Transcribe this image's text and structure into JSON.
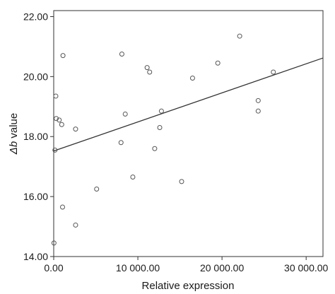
{
  "chart_data": {
    "type": "scatter",
    "title": "",
    "xlabel": "Relative expression",
    "ylabel_symbol": "Δb",
    "ylabel_rest": " value",
    "xlim": [
      0,
      32000
    ],
    "ylim": [
      14,
      22.2
    ],
    "xticks": [
      {
        "value": 0,
        "label": "0.00"
      },
      {
        "value": 10000,
        "label": "10 000.00"
      },
      {
        "value": 20000,
        "label": "20 000.00"
      },
      {
        "value": 30000,
        "label": "30 000.00"
      }
    ],
    "yticks": [
      {
        "value": 14,
        "label": "14.00"
      },
      {
        "value": 16,
        "label": "16.00"
      },
      {
        "value": 18,
        "label": "18.00"
      },
      {
        "value": 20,
        "label": "20.00"
      },
      {
        "value": 22,
        "label": "22.00"
      }
    ],
    "points": [
      {
        "x": 30,
        "y": 14.45
      },
      {
        "x": 150,
        "y": 17.55
      },
      {
        "x": 250,
        "y": 19.35
      },
      {
        "x": 300,
        "y": 18.6
      },
      {
        "x": 650,
        "y": 18.55
      },
      {
        "x": 950,
        "y": 18.4
      },
      {
        "x": 1100,
        "y": 20.7
      },
      {
        "x": 1050,
        "y": 15.65
      },
      {
        "x": 2600,
        "y": 18.25
      },
      {
        "x": 2600,
        "y": 15.05
      },
      {
        "x": 5100,
        "y": 16.25
      },
      {
        "x": 8100,
        "y": 20.75
      },
      {
        "x": 8000,
        "y": 17.8
      },
      {
        "x": 8500,
        "y": 18.75
      },
      {
        "x": 9400,
        "y": 16.65
      },
      {
        "x": 11100,
        "y": 20.3
      },
      {
        "x": 11400,
        "y": 20.15
      },
      {
        "x": 12000,
        "y": 17.6
      },
      {
        "x": 12600,
        "y": 18.3
      },
      {
        "x": 12800,
        "y": 18.85
      },
      {
        "x": 15200,
        "y": 16.5
      },
      {
        "x": 16500,
        "y": 19.95
      },
      {
        "x": 19500,
        "y": 20.45
      },
      {
        "x": 22100,
        "y": 21.35
      },
      {
        "x": 24300,
        "y": 19.2
      },
      {
        "x": 24300,
        "y": 18.85
      },
      {
        "x": 26100,
        "y": 20.15
      }
    ],
    "fit_line": {
      "y_at_xmin": 17.52,
      "y_at_xmax": 20.62
    },
    "colors": {
      "marker": "#555555",
      "line": "#333333",
      "axis": "#333333"
    }
  }
}
